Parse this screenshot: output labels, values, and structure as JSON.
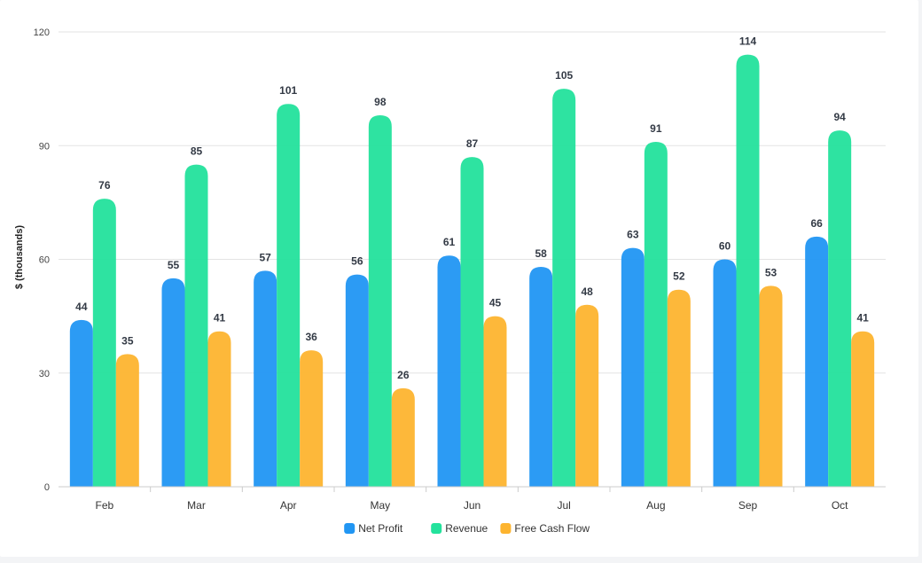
{
  "chart_data": {
    "type": "bar",
    "title": "",
    "xlabel": "",
    "ylabel": "$ (thousands)",
    "ylim": [
      0,
      120
    ],
    "yticks": [
      0,
      30,
      60,
      90,
      120
    ],
    "grid": true,
    "legend_position": "bottom",
    "categories": [
      "Feb",
      "Mar",
      "Apr",
      "May",
      "Jun",
      "Jul",
      "Aug",
      "Sep",
      "Oct"
    ],
    "series": [
      {
        "name": "Net Profit",
        "color": "#2196f3",
        "values": [
          44,
          55,
          57,
          56,
          61,
          58,
          63,
          60,
          66
        ]
      },
      {
        "name": "Revenue",
        "color": "#23e29c",
        "values": [
          76,
          85,
          101,
          98,
          87,
          105,
          91,
          114,
          94
        ]
      },
      {
        "name": "Free Cash Flow",
        "color": "#fdb42f",
        "values": [
          35,
          41,
          36,
          26,
          45,
          48,
          52,
          53,
          41
        ]
      }
    ]
  }
}
